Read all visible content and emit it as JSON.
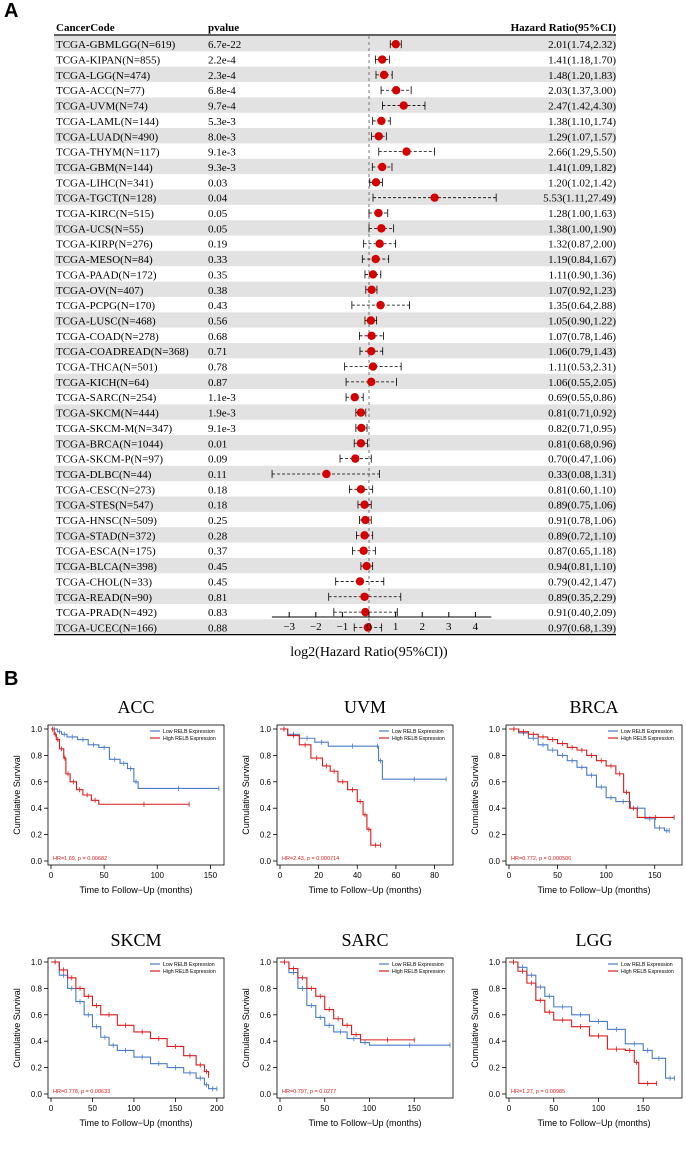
{
  "panelA_label": "A",
  "panelB_label": "B",
  "forest": {
    "headers": {
      "code": "CancerCode",
      "pvalue": "pvalue",
      "hr": "Hazard Ratio(95%CI)"
    },
    "xlabel": "log2(Hazard Ratio(95%CI))",
    "xticks": [
      -3,
      -2,
      -1,
      0,
      1,
      2,
      3,
      4
    ],
    "xrange": [
      -4,
      5
    ],
    "dot_color": "#d40000",
    "stripe_color": "#e2e2e2",
    "rows": [
      {
        "code": "TCGA-GBMLGG(N=619)",
        "p": "6.7e-22",
        "hr": "2.01(1.74,2.32)",
        "v": [
          1.007,
          0.799,
          1.214
        ]
      },
      {
        "code": "TCGA-KIPAN(N=855)",
        "p": "2.2e-4",
        "hr": "1.41(1.18,1.70)",
        "v": [
          0.496,
          0.239,
          0.766
        ]
      },
      {
        "code": "TCGA-LGG(N=474)",
        "p": "2.3e-4",
        "hr": "1.48(1.20,1.83)",
        "v": [
          0.566,
          0.263,
          0.872
        ]
      },
      {
        "code": "TCGA-ACC(N=77)",
        "p": "6.8e-4",
        "hr": "2.03(1.37,3.00)",
        "v": [
          1.021,
          0.454,
          1.585
        ]
      },
      {
        "code": "TCGA-UVM(N=74)",
        "p": "9.7e-4",
        "hr": "2.47(1.42,4.30)",
        "v": [
          1.304,
          0.506,
          2.104
        ]
      },
      {
        "code": "TCGA-LAML(N=144)",
        "p": "5.3e-3",
        "hr": "1.38(1.10,1.74)",
        "v": [
          0.465,
          0.138,
          0.799
        ]
      },
      {
        "code": "TCGA-LUAD(N=490)",
        "p": "8.0e-3",
        "hr": "1.29(1.07,1.57)",
        "v": [
          0.367,
          0.098,
          0.651
        ]
      },
      {
        "code": "TCGA-THYM(N=117)",
        "p": "9.1e-3",
        "hr": "2.66(1.29,5.50)",
        "v": [
          1.411,
          0.367,
          2.459
        ]
      },
      {
        "code": "TCGA-GBM(N=144)",
        "p": "9.3e-3",
        "hr": "1.41(1.09,1.82)",
        "v": [
          0.496,
          0.124,
          0.864
        ]
      },
      {
        "code": "TCGA-LIHC(N=341)",
        "p": "0.03",
        "hr": "1.20(1.02,1.42)",
        "v": [
          0.263,
          0.029,
          0.506
        ]
      },
      {
        "code": "TCGA-TGCT(N=128)",
        "p": "0.04",
        "hr": "5.53(1.11,27.49)",
        "v": [
          2.467,
          0.151,
          4.781
        ]
      },
      {
        "code": "TCGA-KIRC(N=515)",
        "p": "0.05",
        "hr": "1.28(1.00,1.63)",
        "v": [
          0.356,
          0.0,
          0.705
        ]
      },
      {
        "code": "TCGA-UCS(N=55)",
        "p": "0.05",
        "hr": "1.38(1.00,1.90)",
        "v": [
          0.465,
          0.0,
          0.926
        ]
      },
      {
        "code": "TCGA-KIRP(N=276)",
        "p": "0.19",
        "hr": "1.32(0.87,2.00)",
        "v": [
          0.401,
          -0.201,
          1.0
        ]
      },
      {
        "code": "TCGA-MESO(N=84)",
        "p": "0.33",
        "hr": "1.19(0.84,1.67)",
        "v": [
          0.251,
          -0.252,
          0.74
        ]
      },
      {
        "code": "TCGA-PAAD(N=172)",
        "p": "0.35",
        "hr": "1.11(0.90,1.36)",
        "v": [
          0.151,
          -0.152,
          0.444
        ]
      },
      {
        "code": "TCGA-OV(N=407)",
        "p": "0.38",
        "hr": "1.07(0.92,1.23)",
        "v": [
          0.098,
          -0.12,
          0.299
        ]
      },
      {
        "code": "TCGA-PCPG(N=170)",
        "p": "0.43",
        "hr": "1.35(0.64,2.88)",
        "v": [
          0.433,
          -0.644,
          1.526
        ]
      },
      {
        "code": "TCGA-LUSC(N=468)",
        "p": "0.56",
        "hr": "1.05(0.90,1.22)",
        "v": [
          0.07,
          -0.152,
          0.287
        ]
      },
      {
        "code": "TCGA-COAD(N=278)",
        "p": "0.68",
        "hr": "1.07(0.78,1.46)",
        "v": [
          0.098,
          -0.358,
          0.546
        ]
      },
      {
        "code": "TCGA-COADREAD(N=368)",
        "p": "0.71",
        "hr": "1.06(0.79,1.43)",
        "v": [
          0.084,
          -0.34,
          0.516
        ]
      },
      {
        "code": "TCGA-THCA(N=501)",
        "p": "0.78",
        "hr": "1.11(0.53,2.31)",
        "v": [
          0.151,
          -0.916,
          1.208
        ]
      },
      {
        "code": "TCGA-KICH(N=64)",
        "p": "0.87",
        "hr": "1.06(0.55,2.05)",
        "v": [
          0.084,
          -0.862,
          1.036
        ]
      },
      {
        "code": "TCGA-SARC(N=254)",
        "p": "1.1e-3",
        "hr": "0.69(0.55,0.86)",
        "v": [
          -0.535,
          -0.862,
          -0.218
        ]
      },
      {
        "code": "TCGA-SKCM(N=444)",
        "p": "1.9e-3",
        "hr": "0.81(0.71,0.92)",
        "v": [
          -0.304,
          -0.494,
          -0.12
        ]
      },
      {
        "code": "TCGA-SKCM-M(N=347)",
        "p": "9.1e-3",
        "hr": "0.82(0.71,0.95)",
        "v": [
          -0.286,
          -0.494,
          -0.074
        ]
      },
      {
        "code": "TCGA-BRCA(N=1044)",
        "p": "0.01",
        "hr": "0.81(0.68,0.96)",
        "v": [
          -0.304,
          -0.556,
          -0.059
        ]
      },
      {
        "code": "TCGA-SKCM-P(N=97)",
        "p": "0.09",
        "hr": "0.70(0.47,1.06)",
        "v": [
          -0.515,
          -1.089,
          0.084
        ]
      },
      {
        "code": "TCGA-DLBC(N=44)",
        "p": "0.11",
        "hr": "0.33(0.08,1.31)",
        "v": [
          -1.6,
          -3.644,
          0.39
        ]
      },
      {
        "code": "TCGA-CESC(N=273)",
        "p": "0.18",
        "hr": "0.81(0.60,1.10)",
        "v": [
          -0.304,
          -0.737,
          0.138
        ]
      },
      {
        "code": "TCGA-STES(N=547)",
        "p": "0.18",
        "hr": "0.89(0.75,1.06)",
        "v": [
          -0.168,
          -0.415,
          0.084
        ]
      },
      {
        "code": "TCGA-HNSC(N=509)",
        "p": "0.25",
        "hr": "0.91(0.78,1.06)",
        "v": [
          -0.136,
          -0.358,
          0.084
        ]
      },
      {
        "code": "TCGA-STAD(N=372)",
        "p": "0.28",
        "hr": "0.89(0.72,1.10)",
        "v": [
          -0.168,
          -0.474,
          0.138
        ]
      },
      {
        "code": "TCGA-ESCA(N=175)",
        "p": "0.37",
        "hr": "0.87(0.65,1.18)",
        "v": [
          -0.201,
          -0.621,
          0.239
        ]
      },
      {
        "code": "TCGA-BLCA(N=398)",
        "p": "0.45",
        "hr": "0.94(0.81,1.10)",
        "v": [
          -0.089,
          -0.304,
          0.138
        ]
      },
      {
        "code": "TCGA-CHOL(N=33)",
        "p": "0.45",
        "hr": "0.79(0.42,1.47)",
        "v": [
          -0.34,
          -1.252,
          0.556
        ]
      },
      {
        "code": "TCGA-READ(N=90)",
        "p": "0.81",
        "hr": "0.89(0.35,2.29)",
        "v": [
          -0.168,
          -1.515,
          1.195
        ]
      },
      {
        "code": "TCGA-PRAD(N=492)",
        "p": "0.83",
        "hr": "0.91(0.40,2.09)",
        "v": [
          -0.136,
          -1.322,
          1.064
        ]
      },
      {
        "code": "TCGA-UCEC(N=166)",
        "p": "0.88",
        "hr": "0.97(0.68,1.39)",
        "v": [
          -0.044,
          -0.556,
          0.475
        ]
      }
    ]
  },
  "km": {
    "low_color": "#4a7cc7",
    "high_color": "#d91c1c",
    "legend_low": "Low RELB Expression",
    "legend_high": "High RELB Expression",
    "ylabel": "Cumulative Survival",
    "xlabel": "Time to Follow−Up (months)",
    "yticks": [
      "0.0",
      "0.2",
      "0.4",
      "0.6",
      "0.8",
      "1.0"
    ],
    "plots": [
      {
        "title": "ACC",
        "stat": "HR=1.69, p = 0.00682",
        "xticks": [
          0,
          50,
          100,
          150
        ],
        "xmax": 160,
        "low": [
          [
            0,
            1
          ],
          [
            6,
            0.98
          ],
          [
            10,
            0.96
          ],
          [
            15,
            0.94
          ],
          [
            25,
            0.92
          ],
          [
            35,
            0.88
          ],
          [
            45,
            0.86
          ],
          [
            55,
            0.77
          ],
          [
            65,
            0.74
          ],
          [
            72,
            0.7
          ],
          [
            78,
            0.6
          ],
          [
            82,
            0.55
          ],
          [
            158,
            0.55
          ]
        ],
        "high": [
          [
            0,
            1
          ],
          [
            3,
            0.96
          ],
          [
            5,
            0.92
          ],
          [
            8,
            0.85
          ],
          [
            12,
            0.78
          ],
          [
            14,
            0.66
          ],
          [
            18,
            0.6
          ],
          [
            24,
            0.54
          ],
          [
            30,
            0.5
          ],
          [
            38,
            0.46
          ],
          [
            45,
            0.43
          ],
          [
            130,
            0.43
          ]
        ]
      },
      {
        "title": "UVM",
        "stat": "HR=2.43, p = 0.000714",
        "xticks": [
          0,
          20,
          40,
          60,
          80
        ],
        "xmax": 88,
        "low": [
          [
            0,
            1
          ],
          [
            4,
            0.96
          ],
          [
            10,
            0.93
          ],
          [
            18,
            0.9
          ],
          [
            25,
            0.87
          ],
          [
            50,
            0.87
          ],
          [
            51,
            0.76
          ],
          [
            53,
            0.62
          ],
          [
            86,
            0.62
          ]
        ],
        "high": [
          [
            0,
            1
          ],
          [
            4,
            0.95
          ],
          [
            10,
            0.88
          ],
          [
            16,
            0.78
          ],
          [
            22,
            0.72
          ],
          [
            26,
            0.68
          ],
          [
            30,
            0.6
          ],
          [
            35,
            0.54
          ],
          [
            40,
            0.45
          ],
          [
            43,
            0.35
          ],
          [
            45,
            0.24
          ],
          [
            47,
            0.12
          ],
          [
            52,
            0.12
          ]
        ]
      },
      {
        "title": "BRCA",
        "stat": "HR=0.772, p = 0.000506",
        "xticks": [
          0,
          50,
          100,
          150
        ],
        "xmax": 175,
        "low": [
          [
            0,
            1
          ],
          [
            10,
            0.97
          ],
          [
            20,
            0.93
          ],
          [
            30,
            0.88
          ],
          [
            40,
            0.84
          ],
          [
            50,
            0.8
          ],
          [
            60,
            0.76
          ],
          [
            70,
            0.71
          ],
          [
            80,
            0.65
          ],
          [
            90,
            0.56
          ],
          [
            100,
            0.48
          ],
          [
            110,
            0.45
          ],
          [
            125,
            0.4
          ],
          [
            140,
            0.32
          ],
          [
            150,
            0.25
          ],
          [
            160,
            0.23
          ],
          [
            165,
            0.23
          ]
        ],
        "high": [
          [
            0,
            1
          ],
          [
            10,
            0.98
          ],
          [
            20,
            0.96
          ],
          [
            30,
            0.94
          ],
          [
            40,
            0.92
          ],
          [
            50,
            0.89
          ],
          [
            60,
            0.86
          ],
          [
            70,
            0.84
          ],
          [
            80,
            0.8
          ],
          [
            90,
            0.76
          ],
          [
            100,
            0.72
          ],
          [
            110,
            0.66
          ],
          [
            118,
            0.52
          ],
          [
            124,
            0.4
          ],
          [
            132,
            0.33
          ],
          [
            170,
            0.33
          ]
        ]
      },
      {
        "title": "SKCM",
        "stat": "HR=0.778, p = 0.00633",
        "xticks": [
          0,
          50,
          100,
          150,
          200
        ],
        "xmax": 205,
        "low": [
          [
            0,
            1
          ],
          [
            10,
            0.9
          ],
          [
            20,
            0.8
          ],
          [
            30,
            0.7
          ],
          [
            40,
            0.6
          ],
          [
            50,
            0.51
          ],
          [
            60,
            0.43
          ],
          [
            70,
            0.37
          ],
          [
            80,
            0.33
          ],
          [
            100,
            0.28
          ],
          [
            120,
            0.23
          ],
          [
            140,
            0.2
          ],
          [
            160,
            0.16
          ],
          [
            175,
            0.12
          ],
          [
            185,
            0.07
          ],
          [
            190,
            0.04
          ],
          [
            200,
            0.04
          ]
        ],
        "high": [
          [
            0,
            1
          ],
          [
            10,
            0.94
          ],
          [
            20,
            0.88
          ],
          [
            30,
            0.8
          ],
          [
            40,
            0.74
          ],
          [
            50,
            0.67
          ],
          [
            60,
            0.6
          ],
          [
            80,
            0.52
          ],
          [
            100,
            0.47
          ],
          [
            120,
            0.42
          ],
          [
            140,
            0.36
          ],
          [
            160,
            0.29
          ],
          [
            175,
            0.22
          ],
          [
            185,
            0.17
          ],
          [
            190,
            0.14
          ]
        ]
      },
      {
        "title": "SARC",
        "stat": "HR=0.797, p = 0.0277",
        "xticks": [
          0,
          50,
          100,
          150
        ],
        "xmax": 190,
        "low": [
          [
            0,
            1
          ],
          [
            10,
            0.92
          ],
          [
            20,
            0.8
          ],
          [
            30,
            0.67
          ],
          [
            40,
            0.58
          ],
          [
            50,
            0.52
          ],
          [
            60,
            0.47
          ],
          [
            75,
            0.42
          ],
          [
            90,
            0.39
          ],
          [
            100,
            0.37
          ],
          [
            190,
            0.37
          ]
        ],
        "high": [
          [
            0,
            1
          ],
          [
            10,
            0.95
          ],
          [
            20,
            0.88
          ],
          [
            30,
            0.8
          ],
          [
            40,
            0.74
          ],
          [
            50,
            0.64
          ],
          [
            60,
            0.57
          ],
          [
            70,
            0.52
          ],
          [
            80,
            0.45
          ],
          [
            90,
            0.41
          ],
          [
            150,
            0.41
          ]
        ]
      },
      {
        "title": "LGG",
        "stat": "HR=1.27, p = 0.00985",
        "xticks": [
          0,
          50,
          100,
          150
        ],
        "xmax": 190,
        "low": [
          [
            0,
            1
          ],
          [
            10,
            0.96
          ],
          [
            20,
            0.9
          ],
          [
            30,
            0.81
          ],
          [
            40,
            0.74
          ],
          [
            50,
            0.66
          ],
          [
            70,
            0.6
          ],
          [
            90,
            0.55
          ],
          [
            110,
            0.49
          ],
          [
            130,
            0.38
          ],
          [
            150,
            0.33
          ],
          [
            160,
            0.27
          ],
          [
            175,
            0.12
          ],
          [
            185,
            0.12
          ]
        ],
        "high": [
          [
            0,
            1
          ],
          [
            10,
            0.93
          ],
          [
            20,
            0.84
          ],
          [
            30,
            0.71
          ],
          [
            40,
            0.62
          ],
          [
            50,
            0.56
          ],
          [
            70,
            0.51
          ],
          [
            90,
            0.44
          ],
          [
            110,
            0.34
          ],
          [
            130,
            0.33
          ],
          [
            140,
            0.24
          ],
          [
            145,
            0.08
          ],
          [
            165,
            0.08
          ]
        ]
      }
    ]
  }
}
